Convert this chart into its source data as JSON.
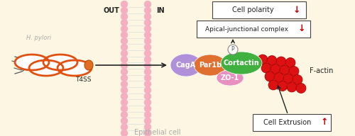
{
  "bg_color": "#fdf6e3",
  "epithelial_cell_label": "Epithelial cell",
  "out_label": "OUT",
  "in_label": "IN",
  "h_pylori_label": "H. pylori",
  "t4ss_label": "T4SS",
  "caga_label": "CagA",
  "caga_color": "#b090d8",
  "par1b_label": "Par1b",
  "par1b_color": "#e07030",
  "zo1_label": "ZO-1",
  "zo1_color": "#e890c0",
  "cortactin_label": "Cortactin",
  "cortactin_color": "#40b040",
  "p_label": "P",
  "factin_label": "F-actin",
  "factin_color": "#dd1111",
  "cell_extrusion_label": "Cell Extrusion",
  "apical_label": "Apical-junctional complex",
  "polarity_label": "Cell polarity",
  "arrow_up_color": "#cc0000",
  "arrow_down_color": "#cc0000",
  "membrane_pink": "#f5b0c0",
  "membrane_line": "#dddddd",
  "arrow_color": "#222222",
  "text_gray": "#aaaaaa",
  "text_dark": "#222222",
  "bact_orange": "#e05010",
  "bact_fill": "#ffffff",
  "needle_color": "#e07020",
  "flagella_color": "#555555"
}
